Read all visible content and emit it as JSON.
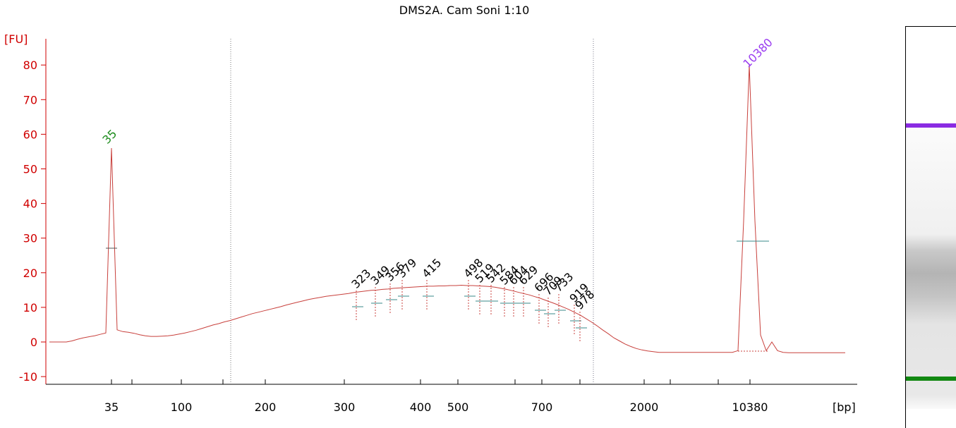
{
  "chart_data": {
    "type": "line",
    "title": "DMS2A. Cam Soni 1:10",
    "ylabel": "[FU]",
    "xlabel": "[bp]",
    "ylim": [
      -12,
      87
    ],
    "yticks": [
      -10,
      0,
      10,
      20,
      30,
      40,
      50,
      60,
      70,
      80
    ],
    "xticks": [
      35,
      100,
      200,
      300,
      400,
      500,
      700,
      2000,
      10380
    ],
    "series": [
      {
        "color": "#c8403c",
        "values": [
          0,
          0,
          0,
          0,
          0.3,
          0.8,
          1.2,
          1.5,
          1.8,
          2.2,
          2.6,
          56,
          3.5,
          3,
          2.8,
          2.5,
          2.1,
          1.8,
          1.6,
          1.6,
          1.7,
          1.8,
          2.0,
          2.3,
          2.6,
          3.0,
          3.4,
          3.9,
          4.4,
          4.9,
          5.3,
          5.8,
          6.2,
          6.7,
          7.2,
          7.7,
          8.2,
          8.6,
          9.0,
          9.4,
          9.8,
          10.2,
          10.7,
          11.1,
          11.5,
          11.9,
          12.3,
          12.6,
          12.9,
          13.2,
          13.4,
          13.6,
          13.8,
          14.0,
          14.3,
          14.5,
          14.7,
          14.9,
          15.0,
          15.2,
          15.3,
          15.5,
          15.6,
          15.7,
          15.8,
          15.9,
          16.0,
          16.1,
          16.1,
          16.2,
          16.2,
          16.3,
          16.3,
          16.4,
          16.3,
          16.3,
          16.2,
          16.1,
          16.0,
          15.8,
          15.5,
          15.2,
          14.8,
          14.4,
          14.0,
          13.6,
          13.1,
          12.6,
          12.0,
          11.4,
          10.8,
          10.1,
          9.4,
          8.6,
          7.8,
          6.8,
          5.8,
          4.7,
          3.5,
          2.4,
          1.2,
          0.3,
          -0.6,
          -1.3,
          -1.9,
          -2.3,
          -2.6,
          -2.8,
          -3,
          -3,
          -3,
          -3,
          -3,
          -3,
          -3,
          -3,
          -3,
          -3,
          -3,
          -3,
          -3,
          -3,
          -2.5,
          35,
          80,
          35,
          2,
          -2.5,
          0,
          -2.5,
          -3,
          -3.1,
          -3.1,
          -3.1,
          -3.1,
          -3.1,
          -3.1,
          -3.1,
          -3.1,
          -3.1,
          -3.1,
          -3.1
        ]
      }
    ],
    "lower_marker": {
      "size": 35,
      "color": "#1e8c1e"
    },
    "upper_marker": {
      "size": 10380,
      "color": "#9a3cf0"
    },
    "peaks": [
      323,
      349,
      356,
      379,
      415,
      498,
      519,
      542,
      584,
      604,
      629,
      696,
      709,
      733,
      919,
      978
    ]
  }
}
